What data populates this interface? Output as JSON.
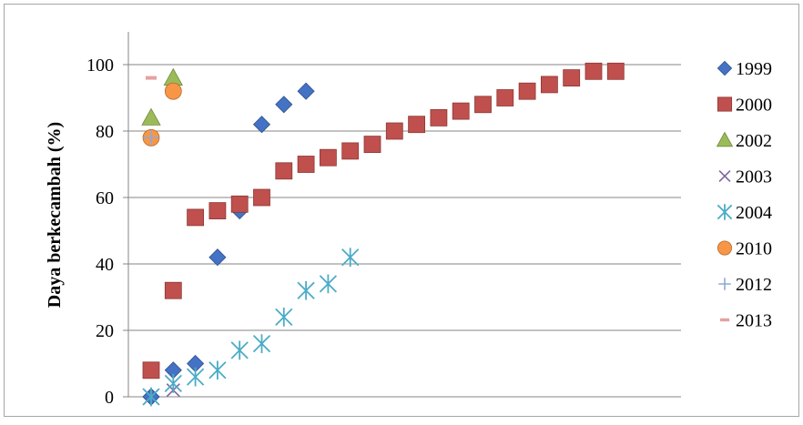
{
  "chart_data": {
    "type": "scatter",
    "title": "",
    "xlabel": "",
    "ylabel": "Daya berkecambah (%)",
    "ylim": [
      0,
      100
    ],
    "yticks": [
      0,
      20,
      40,
      60,
      80,
      100
    ],
    "x_tick_labels_shown": false,
    "grid": "horizontal",
    "legend_position": "right",
    "series": [
      {
        "name": "1999",
        "marker": "diamond",
        "color": "#4472C4",
        "x": [
          1,
          1,
          2,
          3,
          4,
          5,
          6,
          7,
          8
        ],
        "y": [
          0,
          0,
          8,
          10,
          42,
          56,
          82,
          88,
          92
        ]
      },
      {
        "name": "2000",
        "marker": "square",
        "color": "#C0504D",
        "x": [
          1,
          2,
          3,
          4,
          5,
          6,
          7,
          8,
          9,
          10,
          11,
          12,
          13,
          14,
          15,
          16,
          17,
          18,
          19,
          20,
          21,
          22
        ],
        "y": [
          8,
          32,
          54,
          56,
          58,
          60,
          68,
          70,
          72,
          74,
          76,
          80,
          82,
          84,
          86,
          88,
          90,
          92,
          94,
          96,
          98,
          98
        ]
      },
      {
        "name": "2002",
        "marker": "triangle",
        "color": "#9BBB59",
        "x": [
          1,
          2
        ],
        "y": [
          84,
          96
        ]
      },
      {
        "name": "2003",
        "marker": "x",
        "color": "#8064A2",
        "x": [
          1,
          2
        ],
        "y": [
          0,
          2
        ]
      },
      {
        "name": "2004",
        "marker": "star",
        "color": "#4BACC6",
        "x": [
          1,
          2,
          3,
          4,
          5,
          6,
          7,
          8,
          9,
          10
        ],
        "y": [
          0,
          4,
          6,
          8,
          14,
          16,
          24,
          32,
          34,
          42
        ]
      },
      {
        "name": "2010",
        "marker": "circle",
        "color": "#F79646",
        "x": [
          1,
          2
        ],
        "y": [
          78,
          92
        ]
      },
      {
        "name": "2012",
        "marker": "plus",
        "color": "#8EA9DB",
        "x": [
          1
        ],
        "y": [
          78
        ]
      },
      {
        "name": "2013",
        "marker": "dash",
        "color": "#E6A0A0",
        "x": [
          1
        ],
        "y": [
          96
        ]
      }
    ]
  }
}
